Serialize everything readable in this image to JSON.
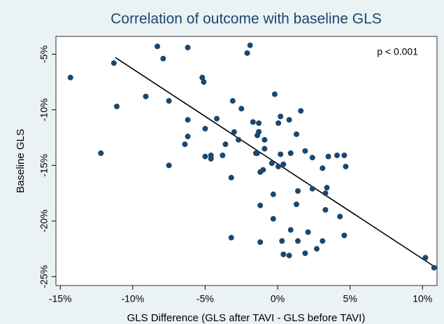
{
  "chart_data": {
    "type": "scatter",
    "title": "Correlation of outcome with baseline GLS",
    "x_label": "GLS Difference (GLS after TAVI - GLS before TAVI)",
    "y_label": "Baseline GLS",
    "annotation": "p < 0.001",
    "color": "#1a476f",
    "xlim": [
      -15.3,
      11.0
    ],
    "ylim": [
      -25.8,
      -3.4
    ],
    "xticks": [
      {
        "value": -15,
        "label": "-15%"
      },
      {
        "value": -10,
        "label": "-10%"
      },
      {
        "value": -5,
        "label": "-5%"
      },
      {
        "value": 0,
        "label": "0%"
      },
      {
        "value": 5,
        "label": "5%"
      },
      {
        "value": 10,
        "label": "10%"
      }
    ],
    "yticks": [
      {
        "value": -5,
        "label": "-5%"
      },
      {
        "value": -10,
        "label": "-10%"
      },
      {
        "value": -15,
        "label": "-15%"
      },
      {
        "value": -20,
        "label": "-20%"
      },
      {
        "value": -25,
        "label": "-25%"
      }
    ],
    "x": [
      -14.3,
      -8.3,
      -6.2,
      -1.9,
      -2.1,
      -7.9,
      -11.3,
      -5.2,
      -5.1,
      -9.1,
      -11.1,
      -7.5,
      -3.1,
      -0.2,
      -2.5,
      1.6,
      0.2,
      -6.2,
      -4.2,
      -1.7,
      -1.3,
      0.05,
      0.8,
      -5.0,
      -6.2,
      -3.0,
      -1.3,
      -1.4,
      1.3,
      -0.9,
      -2.7,
      -3.6,
      -6.4,
      -0.9,
      -1.4,
      -12.2,
      -5.0,
      -4.6,
      -4.6,
      -3.8,
      -1.5,
      0.2,
      0.9,
      1.9,
      2.4,
      3.5,
      4.1,
      4.6,
      -7.5,
      -0.4,
      0.05,
      0.4,
      3.1,
      4.7,
      -1.0,
      -1.2,
      -3.2,
      2.4,
      3.4,
      1.4,
      3.3,
      -0.3,
      -1.2,
      1.3,
      3.3,
      4.3,
      -0.3,
      0.9,
      2.1,
      4.6,
      -3.2,
      -1.2,
      0.3,
      1.4,
      3.1,
      2.7,
      0.4,
      0.8,
      1.9,
      10.2,
      10.8
    ],
    "y": [
      -7.1,
      -4.3,
      -4.4,
      -4.2,
      -4.9,
      -5.4,
      -5.8,
      -7.1,
      -7.5,
      -8.8,
      -9.7,
      -9.2,
      -9.2,
      -8.6,
      -9.9,
      -10.1,
      -10.6,
      -10.9,
      -10.8,
      -11.1,
      -11.2,
      -11.2,
      -10.9,
      -11.7,
      -12.4,
      -12.0,
      -11.98,
      -12.3,
      -12.2,
      -12.7,
      -12.7,
      -13.1,
      -13.1,
      -13.5,
      -13.9,
      -13.9,
      -14.2,
      -14.4,
      -14.1,
      -14.1,
      -13.9,
      -14.0,
      -13.9,
      -13.7,
      -14.3,
      -14.2,
      -14.1,
      -14.1,
      -15.0,
      -14.8,
      -15.1,
      -14.9,
      -15.25,
      -15.1,
      -15.4,
      -15.6,
      -16.1,
      -17.1,
      -17.0,
      -17.3,
      -17.5,
      -17.6,
      -18.6,
      -18.5,
      -19.0,
      -19.6,
      -19.8,
      -20.8,
      -21.0,
      -21.3,
      -21.5,
      -21.9,
      -21.8,
      -21.8,
      -21.8,
      -22.5,
      -23.0,
      -23.1,
      -22.9,
      -23.3,
      -24.2
    ],
    "fit_line": {
      "x": [
        -11.2,
        10.7
      ],
      "y": [
        -5.3,
        -24.0
      ]
    }
  }
}
